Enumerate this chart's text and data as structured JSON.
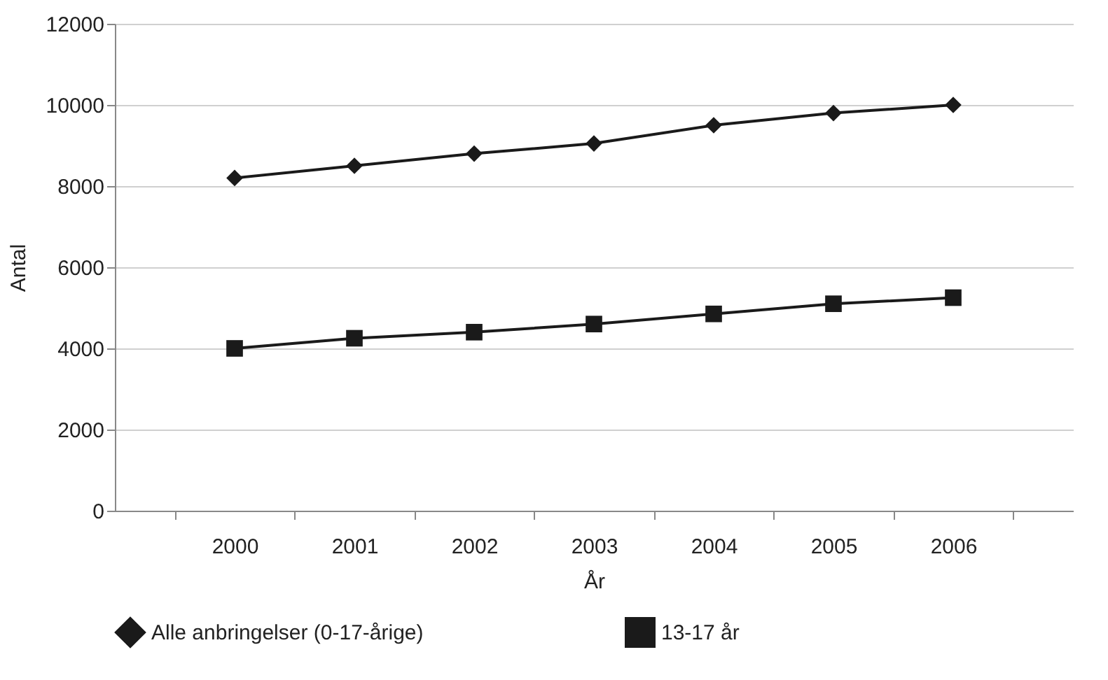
{
  "chart_data": {
    "type": "line",
    "xlabel": "År",
    "ylabel": "Antal",
    "categories": [
      "2000",
      "2001",
      "2002",
      "2003",
      "2004",
      "2005",
      "2006"
    ],
    "series": [
      {
        "name": "Alle anbringelser (0-17-årige)",
        "color": "#1a1a1a",
        "marker": "diamond",
        "values": [
          8200,
          8500,
          8800,
          9050,
          9500,
          9800,
          10000
        ]
      },
      {
        "name": "13-17 år",
        "color": "#1a1a1a",
        "marker": "square",
        "values": [
          4000,
          4250,
          4400,
          4600,
          4850,
          5100,
          5250
        ]
      }
    ],
    "ylim": [
      0,
      12000
    ],
    "yticks": [
      0,
      2000,
      4000,
      6000,
      8000,
      10000,
      12000
    ],
    "grid": "y",
    "legend": "bottom",
    "line_style": "solid"
  }
}
